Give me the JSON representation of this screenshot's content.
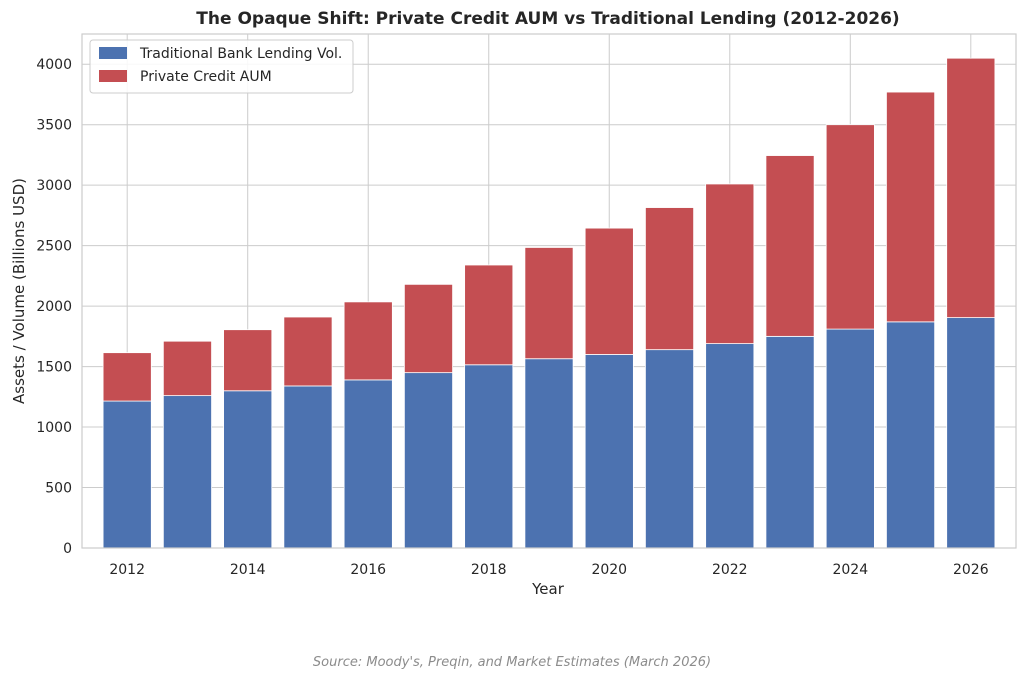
{
  "chart_data": {
    "type": "bar",
    "stacked": true,
    "title": "The Opaque Shift: Private Credit AUM vs Traditional Lending (2012-2026)",
    "xlabel": "Year",
    "ylabel": "Assets / Volume (Billions USD)",
    "categories": [
      2012,
      2013,
      2014,
      2015,
      2016,
      2017,
      2018,
      2019,
      2020,
      2021,
      2022,
      2023,
      2024,
      2025,
      2026
    ],
    "x_ticks": [
      2012,
      2014,
      2016,
      2018,
      2020,
      2022,
      2024,
      2026
    ],
    "y_ticks": [
      0,
      500,
      1000,
      1500,
      2000,
      2500,
      3000,
      3500,
      4000
    ],
    "ylim": [
      0,
      4250
    ],
    "grid": true,
    "legend_position": "top-left",
    "series": [
      {
        "name": "Traditional Bank Lending Vol.",
        "color": "#4c72b0",
        "values": [
          1215,
          1260,
          1300,
          1340,
          1390,
          1450,
          1515,
          1565,
          1600,
          1640,
          1690,
          1750,
          1810,
          1870,
          1905
        ]
      },
      {
        "name": "Private Credit AUM",
        "color": "#c44e52",
        "values": [
          400,
          450,
          505,
          570,
          645,
          730,
          825,
          920,
          1045,
          1175,
          1320,
          1495,
          1690,
          1900,
          2145
        ]
      }
    ]
  },
  "footer": {
    "source": "Source: Moody's, Preqin, and Market Estimates (March 2026)"
  }
}
